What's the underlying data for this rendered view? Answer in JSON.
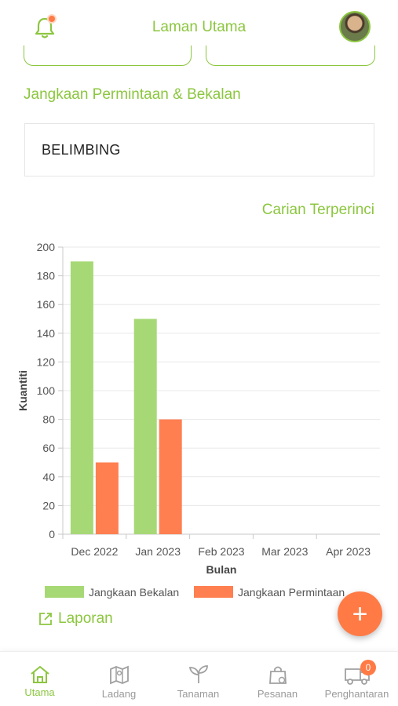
{
  "header": {
    "title": "Laman Utama",
    "notification_icon": "bell-icon",
    "profile_icon": "avatar"
  },
  "section": {
    "title": "Jangkaan Permintaan & Bekalan",
    "crop_name": "BELIMBING",
    "detail_link": "Carian Terperinci"
  },
  "report": {
    "label": "Laporan",
    "icon": "external-link-icon"
  },
  "fab": {
    "label": "+"
  },
  "colors": {
    "accent": "#8cc63f",
    "supply": "#a6d975",
    "demand": "#ff7f50",
    "fab": "#ff7a45"
  },
  "chart_data": {
    "type": "bar",
    "categories": [
      "Dec 2022",
      "Jan 2023",
      "Feb 2023",
      "Mar 2023",
      "Apr 2023"
    ],
    "series": [
      {
        "name": "Jangkaan Bekalan",
        "values": [
          190,
          150,
          0,
          0,
          0
        ],
        "color": "#a6d975"
      },
      {
        "name": "Jangkaan Permintaan",
        "values": [
          50,
          80,
          0,
          0,
          0
        ],
        "color": "#ff7f50"
      }
    ],
    "xlabel": "Bulan",
    "ylabel": "Kuantiti",
    "ylim": [
      0,
      200
    ],
    "yticks": [
      0,
      20,
      40,
      60,
      80,
      100,
      120,
      140,
      160,
      180,
      200
    ],
    "grid": true,
    "legend_position": "bottom"
  },
  "bottom_nav": {
    "items": [
      {
        "label": "Utama",
        "icon": "home-icon",
        "active": true
      },
      {
        "label": "Ladang",
        "icon": "farm-map-icon",
        "active": false
      },
      {
        "label": "Tanaman",
        "icon": "plant-icon",
        "active": false
      },
      {
        "label": "Pesanan",
        "icon": "shopping-bag-icon",
        "active": false
      },
      {
        "label": "Penghantaran",
        "icon": "delivery-truck-icon",
        "active": false,
        "badge": "0"
      }
    ]
  }
}
